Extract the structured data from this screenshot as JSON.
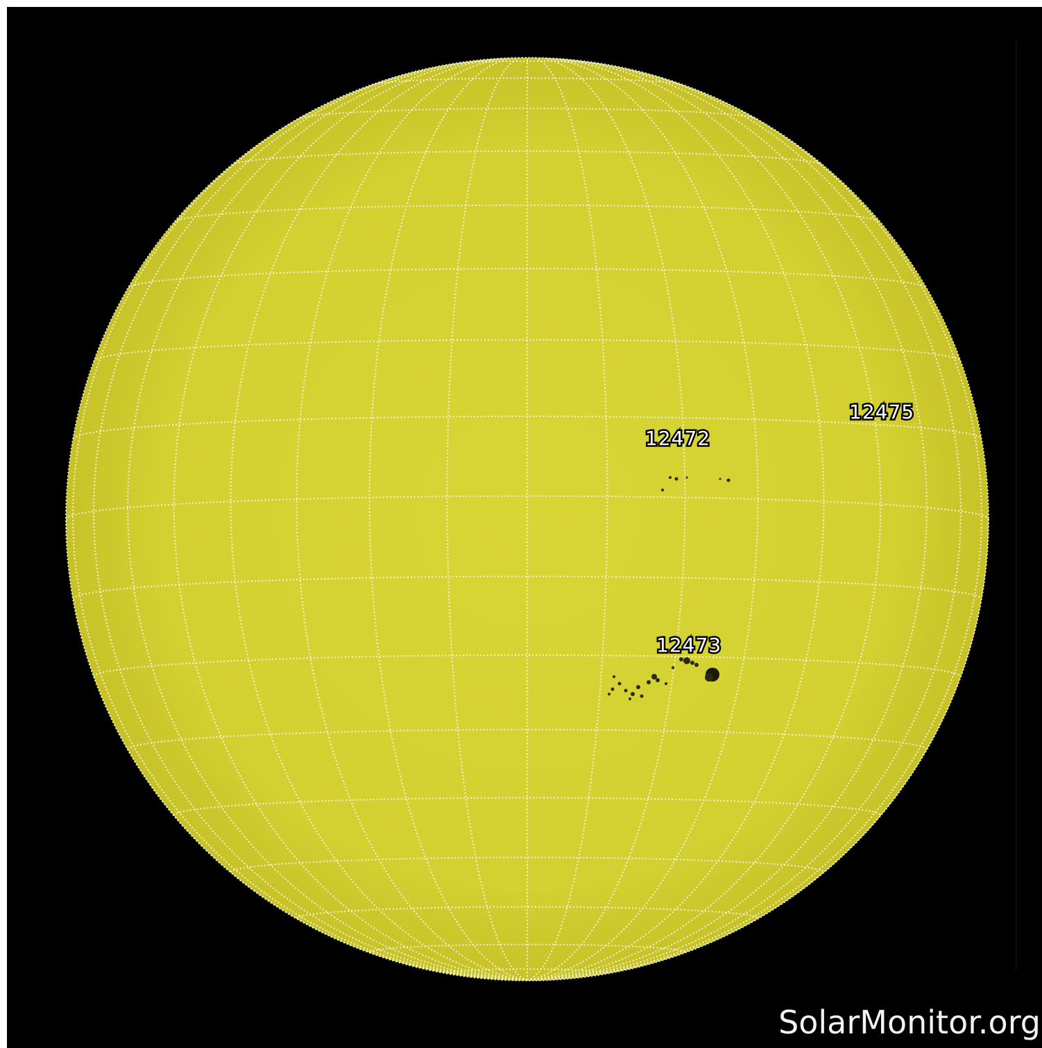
{
  "image": {
    "subject": "full-disk solar continuum image",
    "colors": {
      "background": "#000000",
      "disk": "#d4d132",
      "disk_limb": "#c9c52a",
      "grid": "#f5f5d8",
      "sunspot": "#2a2a10",
      "label_fill": "#ffffff",
      "label_outline": "#000000",
      "credit_text": "#f2f2f2"
    }
  },
  "active_regions": [
    {
      "id": "12475",
      "label": "12475"
    },
    {
      "id": "12472",
      "label": "12472"
    },
    {
      "id": "12473",
      "label": "12473"
    }
  ],
  "credit": {
    "text": "SolarMonitor.org"
  }
}
